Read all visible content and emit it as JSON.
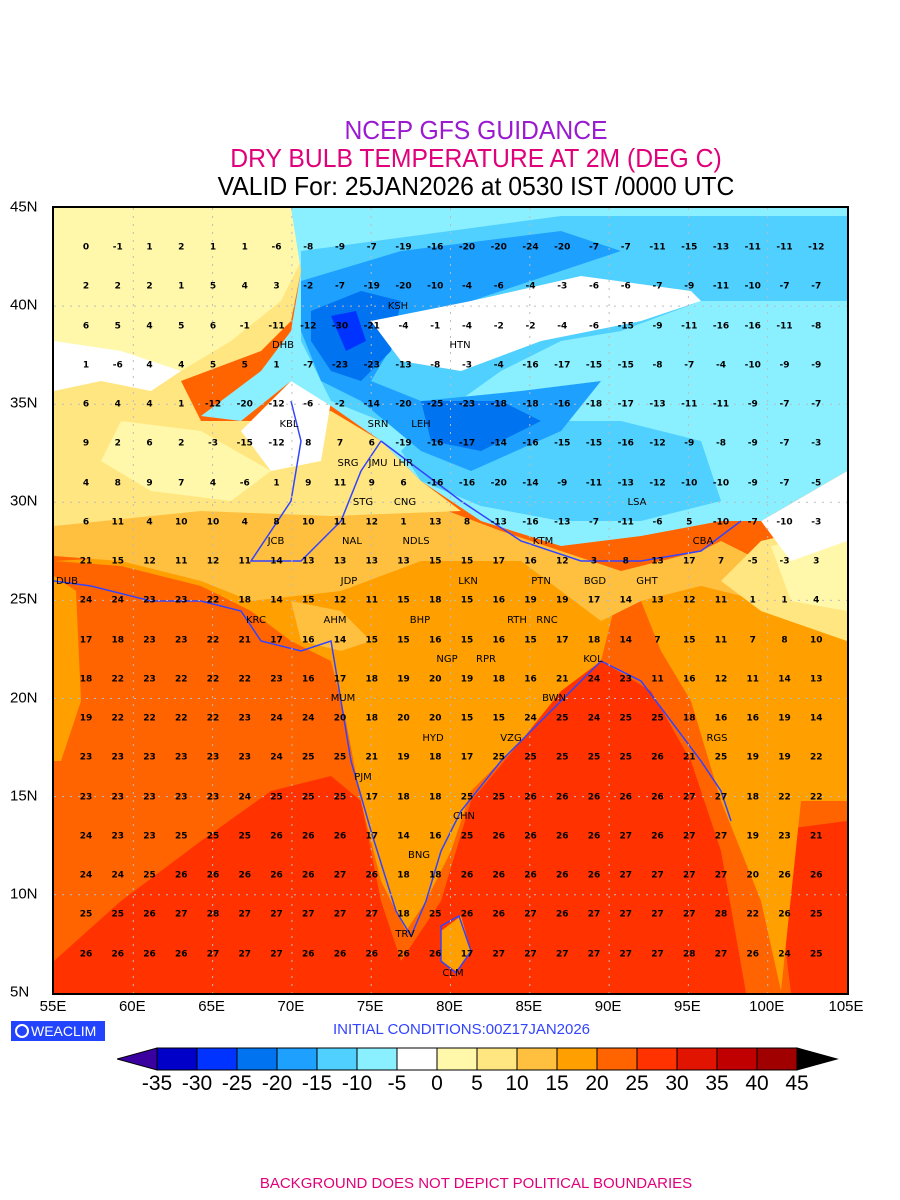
{
  "header": {
    "line1": "NCEP GFS GUIDANCE",
    "line2": "DRY BULB TEMPERATURE AT 2M (DEG C)",
    "line3": "VALID For: 25JAN2026 at 0530 IST /0000 UTC"
  },
  "axes": {
    "lat_labels": [
      "45N",
      "40N",
      "35N",
      "30N",
      "25N",
      "20N",
      "15N",
      "10N",
      "5N"
    ],
    "lon_labels": [
      "55E",
      "60E",
      "65E",
      "70E",
      "75E",
      "80E",
      "85E",
      "90E",
      "95E",
      "100E",
      "105E"
    ]
  },
  "grid_values": [
    [
      "0",
      "-1",
      "1",
      "2",
      "1",
      "1",
      "-6",
      "-8",
      "-9",
      "-7",
      "-19",
      "-16",
      "-20",
      "-20",
      "-24",
      "-20",
      "-7",
      "-7",
      "-11",
      "-15",
      "-13",
      "-11",
      "-11",
      "-12"
    ],
    [
      "2",
      "2",
      "2",
      "1",
      "5",
      "4",
      "3",
      "-2",
      "-7",
      "-19",
      "-20",
      "-10",
      "-4",
      "-6",
      "-4",
      "-3",
      "-6",
      "-6",
      "-7",
      "-9",
      "-11",
      "-10",
      "-7",
      "-7"
    ],
    [
      "6",
      "5",
      "4",
      "5",
      "6",
      "-1",
      "-11",
      "-12",
      "-30",
      "-21",
      "-4",
      "-1",
      "-4",
      "-2",
      "-2",
      "-4",
      "-6",
      "-15",
      "-9",
      "-11",
      "-16",
      "-16",
      "-11",
      "-8"
    ],
    [
      "1",
      "-6",
      "4",
      "4",
      "5",
      "5",
      "1",
      "-7",
      "-23",
      "-23",
      "-13",
      "-8",
      "-3",
      "-4",
      "-16",
      "-17",
      "-15",
      "-15",
      "-8",
      "-7",
      "-4",
      "-10",
      "-9",
      "-9"
    ],
    [
      "6",
      "4",
      "4",
      "1",
      "-12",
      "-20",
      "-12",
      "-6",
      "-2",
      "-14",
      "-20",
      "-25",
      "-23",
      "-18",
      "-18",
      "-16",
      "-18",
      "-17",
      "-13",
      "-11",
      "-11",
      "-9",
      "-7",
      "-7"
    ],
    [
      "9",
      "2",
      "6",
      "2",
      "-3",
      "-15",
      "-12",
      "8",
      "7",
      "6",
      "-19",
      "-16",
      "-17",
      "-14",
      "-16",
      "-15",
      "-15",
      "-16",
      "-12",
      "-9",
      "-8",
      "-9",
      "-7",
      "-3"
    ],
    [
      "4",
      "8",
      "9",
      "7",
      "4",
      "-6",
      "1",
      "9",
      "11",
      "9",
      "6",
      "-16",
      "-16",
      "-20",
      "-14",
      "-9",
      "-11",
      "-13",
      "-12",
      "-10",
      "-10",
      "-9",
      "-7",
      "-5"
    ],
    [
      "6",
      "11",
      "4",
      "10",
      "10",
      "4",
      "8",
      "10",
      "11",
      "12",
      "1",
      "13",
      "8",
      "-13",
      "-16",
      "-13",
      "-7",
      "-11",
      "-6",
      "5",
      "-10",
      "-7",
      "-10",
      "-3"
    ],
    [
      "21",
      "15",
      "12",
      "11",
      "12",
      "11",
      "14",
      "13",
      "13",
      "13",
      "13",
      "15",
      "15",
      "17",
      "16",
      "12",
      "3",
      "8",
      "13",
      "17",
      "7",
      "-5",
      "-3",
      "3"
    ],
    [
      "24",
      "24",
      "23",
      "23",
      "22",
      "18",
      "14",
      "15",
      "12",
      "11",
      "15",
      "18",
      "15",
      "16",
      "19",
      "19",
      "17",
      "14",
      "13",
      "12",
      "11",
      "1",
      "1",
      "4"
    ],
    [
      "17",
      "18",
      "23",
      "23",
      "22",
      "21",
      "17",
      "16",
      "14",
      "15",
      "15",
      "16",
      "15",
      "16",
      "15",
      "17",
      "18",
      "14",
      "7",
      "15",
      "11",
      "7",
      "8",
      "10"
    ],
    [
      "18",
      "22",
      "23",
      "22",
      "22",
      "22",
      "23",
      "16",
      "17",
      "18",
      "19",
      "20",
      "19",
      "18",
      "16",
      "21",
      "24",
      "23",
      "11",
      "16",
      "12",
      "11",
      "14",
      "13"
    ],
    [
      "19",
      "22",
      "22",
      "22",
      "22",
      "23",
      "24",
      "24",
      "20",
      "18",
      "20",
      "20",
      "15",
      "15",
      "24",
      "25",
      "24",
      "25",
      "25",
      "18",
      "16",
      "16",
      "19",
      "14"
    ],
    [
      "23",
      "23",
      "23",
      "23",
      "23",
      "23",
      "24",
      "25",
      "25",
      "21",
      "19",
      "18",
      "17",
      "25",
      "25",
      "25",
      "25",
      "25",
      "26",
      "21",
      "25",
      "19",
      "19",
      "22"
    ],
    [
      "23",
      "23",
      "23",
      "23",
      "23",
      "24",
      "25",
      "25",
      "25",
      "17",
      "18",
      "18",
      "25",
      "25",
      "26",
      "26",
      "26",
      "26",
      "26",
      "27",
      "27",
      "18",
      "22",
      "22"
    ],
    [
      "24",
      "23",
      "23",
      "25",
      "25",
      "25",
      "26",
      "26",
      "26",
      "17",
      "14",
      "16",
      "25",
      "26",
      "26",
      "26",
      "26",
      "27",
      "26",
      "27",
      "27",
      "19",
      "23",
      "21"
    ],
    [
      "24",
      "24",
      "25",
      "26",
      "26",
      "26",
      "26",
      "26",
      "27",
      "26",
      "18",
      "18",
      "26",
      "26",
      "26",
      "26",
      "26",
      "27",
      "27",
      "27",
      "27",
      "20",
      "26",
      "26"
    ],
    [
      "25",
      "25",
      "26",
      "27",
      "28",
      "27",
      "27",
      "27",
      "27",
      "27",
      "18",
      "25",
      "26",
      "26",
      "27",
      "26",
      "27",
      "27",
      "27",
      "27",
      "28",
      "22",
      "26",
      "25"
    ],
    [
      "26",
      "26",
      "26",
      "26",
      "27",
      "27",
      "27",
      "26",
      "26",
      "26",
      "26",
      "26",
      "17",
      "27",
      "27",
      "27",
      "27",
      "27",
      "27",
      "28",
      "27",
      "26",
      "24",
      "25"
    ]
  ],
  "stations": [
    "DHB",
    "KSH",
    "HTN",
    "KBL",
    "SRN",
    "LEH",
    "JMU",
    "SRG",
    "LHR",
    "CNG",
    "STG",
    "NDLS",
    "JCB",
    "NAL",
    "JDP",
    "LKN",
    "KTM",
    "PTN",
    "BGD",
    "CBA",
    "LSA",
    "GHT",
    "DUB",
    "KRC",
    "RTH",
    "AHM",
    "BHP",
    "RNC",
    "KOL",
    "NGP",
    "RPR",
    "BWN",
    "MUM",
    "HYD",
    "VZG",
    "RGS",
    "PJM",
    "BNG",
    "CHN",
    "TRV",
    "CLM"
  ],
  "footer_info": {
    "logo": "WEACLIM",
    "initial_conditions": "INITIAL CONDITIONS:00Z17JAN2026",
    "disclaimer": "BACKGROUND DOES NOT DEPICT POLITICAL BOUNDARIES"
  },
  "colorbar": {
    "labels": [
      "-35",
      "-30",
      "-25",
      "-20",
      "-15",
      "-10",
      "-5",
      "0",
      "5",
      "10",
      "15",
      "20",
      "25",
      "30",
      "35",
      "40",
      "45"
    ],
    "colors": [
      "#0000c8",
      "#0033ff",
      "#0073f0",
      "#1ea0ff",
      "#50d0ff",
      "#8af0ff",
      "#ffffff",
      "#fff8aa",
      "#ffe680",
      "#ffc040",
      "#ffa000",
      "#ff6400",
      "#ff3200",
      "#e01400",
      "#c00000",
      "#a00000"
    ],
    "under_color": "#3a00a0",
    "over_color": "#000000"
  }
}
